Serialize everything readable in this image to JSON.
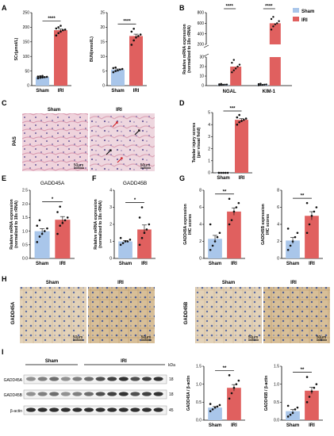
{
  "colors": {
    "sham": "#a9c6ea",
    "iri": "#e0605f",
    "axis": "#000000",
    "pas_pink": "#e8b4c4",
    "ihc_bg": "#d9c3a3",
    "ihc_nuclei": "#5a6aa0",
    "band": "#1a1a1a"
  },
  "panels": {
    "A": "A",
    "B": "B",
    "C": "C",
    "D": "D",
    "E": "E",
    "F": "F",
    "G": "G",
    "H": "H",
    "I": "I"
  },
  "legend": {
    "sham": "Sham",
    "iri": "IRI"
  },
  "micrographs": {
    "C": {
      "row_label": "PAS",
      "col1": "Sham",
      "col2": "IRI",
      "scale1": "50μm",
      "scale2": "50μm"
    },
    "H": {
      "row1": "GADD45A",
      "row2": "GADD45B",
      "col1": "Sham",
      "col2": "IRI",
      "col3": "Sham",
      "col4": "IRI",
      "scale": "50μm"
    }
  },
  "western": {
    "header_sham": "Sham",
    "header_iri": "IRI",
    "kda": "kDa",
    "rows": [
      {
        "label": "GADD45A",
        "kda": "18"
      },
      {
        "label": "GADD45B",
        "kda": "18"
      },
      {
        "label": "β-actin",
        "kda": "45"
      }
    ]
  },
  "chart_data": [
    {
      "id": "A1",
      "type": "bar",
      "categories": [
        "Sham",
        "IRI"
      ],
      "values": [
        29,
        190
      ],
      "ylabel": "SCr(μmol/L)",
      "ylim": [
        0,
        250
      ],
      "yticks": [
        0,
        50,
        100,
        150,
        200,
        250
      ],
      "significance": "****",
      "points": [
        [
          25,
          27,
          28,
          29,
          30,
          31,
          32,
          33
        ],
        [
          172,
          180,
          185,
          190,
          192,
          196,
          200,
          205
        ]
      ]
    },
    {
      "id": "A2",
      "type": "bar",
      "categories": [
        "Sham",
        "IRI"
      ],
      "values": [
        5.5,
        17
      ],
      "ylabel": "BUN(mmol/L)",
      "ylim": [
        0,
        25
      ],
      "yticks": [
        0,
        5,
        10,
        15,
        20,
        25
      ],
      "significance": "****",
      "points": [
        [
          4.6,
          5.0,
          5.2,
          5.5,
          5.7,
          6.0,
          6.2
        ],
        [
          14,
          15.5,
          16.5,
          17,
          17.5,
          18.5,
          19.5
        ]
      ]
    },
    {
      "id": "B",
      "type": "bar",
      "categories": [
        "NGAL",
        "KIM-1"
      ],
      "ylabel": "Relative mRNA expression (normalized to 18s rRNA)",
      "yticks": [
        0,
        10,
        20,
        30,
        200,
        400,
        600,
        800
      ],
      "axis_break": [
        30,
        200
      ],
      "significance": [
        "****",
        "****"
      ],
      "series": [
        {
          "name": "Sham",
          "values": [
            1,
            1
          ],
          "points": [
            [
              0.4,
              0.7,
              0.9,
              1.0,
              1.1,
              1.4,
              1.8
            ],
            [
              0.3,
              0.6,
              0.8,
              1.0,
              1.2,
              1.6,
              2.0
            ]
          ]
        },
        {
          "name": "IRI",
          "values": [
            20,
            600
          ],
          "points": [
            [
              14,
              16,
              18,
              20,
              22,
              24,
              27
            ],
            [
              480,
              540,
              580,
              600,
              640,
              680,
              720
            ]
          ]
        }
      ]
    },
    {
      "id": "D",
      "type": "bar",
      "categories": [
        "Sham",
        "IRI"
      ],
      "values": [
        0,
        4.4
      ],
      "ylabel": "Tubular injury scores (per visual field)",
      "ylim": [
        0,
        5
      ],
      "yticks": [
        0,
        1,
        2,
        3,
        4,
        5
      ],
      "significance": "***",
      "points": [
        [
          0,
          0,
          0,
          0,
          0,
          0
        ],
        [
          4.0,
          4.2,
          4.3,
          4.4,
          4.5,
          4.6,
          4.8
        ]
      ]
    },
    {
      "id": "E",
      "type": "bar",
      "title": "GADD45A",
      "categories": [
        "Sham",
        "IRI"
      ],
      "values": [
        1.0,
        1.42
      ],
      "ylabel": "Relative mRNA expression (normalized to 18s rRNA)",
      "ylim": [
        0,
        2.5
      ],
      "yticks": [
        0.0,
        0.5,
        1.0,
        1.5,
        2.0,
        2.5
      ],
      "significance": "*",
      "points": [
        [
          0.6,
          0.8,
          0.9,
          1.0,
          1.1,
          1.2,
          1.4
        ],
        [
          0.9,
          1.2,
          1.3,
          1.4,
          1.5,
          1.7,
          1.9
        ]
      ]
    },
    {
      "id": "F",
      "type": "bar",
      "title": "GADD45B",
      "categories": [
        "Sham",
        "IRI"
      ],
      "values": [
        1.0,
        1.7
      ],
      "ylabel": "Relative mRNA expression (normalized to 18s rRNA)",
      "ylim": [
        0,
        4
      ],
      "yticks": [
        0,
        1,
        2,
        3,
        4
      ],
      "significance": "*",
      "points": [
        [
          0.8,
          0.9,
          1.0,
          1.0,
          1.1,
          1.2
        ],
        [
          0.8,
          1.2,
          1.5,
          1.7,
          2.0,
          2.4,
          3.0
        ]
      ]
    },
    {
      "id": "G1",
      "type": "bar",
      "categories": [
        "Sham",
        "IRI"
      ],
      "values": [
        2.3,
        5.5
      ],
      "ylabel": "GADD45A expression IHC scores",
      "ylim": [
        0,
        8
      ],
      "yticks": [
        0,
        2,
        4,
        6,
        8
      ],
      "significance": "**",
      "points": [
        [
          1.0,
          1.5,
          2.0,
          2.5,
          3.0,
          4.0
        ],
        [
          4.0,
          4.5,
          5.5,
          6.0,
          6.5,
          7.0
        ]
      ]
    },
    {
      "id": "G2",
      "type": "bar",
      "categories": [
        "Sham",
        "IRI"
      ],
      "values": [
        2.1,
        5.0
      ],
      "ylabel": "GADD45B expression IHC scores",
      "ylim": [
        0,
        8
      ],
      "yticks": [
        0,
        2,
        4,
        6,
        8
      ],
      "significance": "**",
      "points": [
        [
          1.0,
          1.5,
          2.0,
          2.5,
          3.0,
          3.5
        ],
        [
          3.0,
          4.0,
          5.0,
          5.5,
          6.0,
          6.5
        ]
      ]
    },
    {
      "id": "I1",
      "type": "bar",
      "categories": [
        "Sham",
        "IRI"
      ],
      "values": [
        0.35,
        0.9
      ],
      "ylabel": "GADD45A / β-actin",
      "ylim": [
        0,
        1.5
      ],
      "yticks": [
        0.0,
        0.5,
        1.0,
        1.5
      ],
      "significance": "**",
      "points": [
        [
          0.25,
          0.3,
          0.35,
          0.38,
          0.42,
          0.45
        ],
        [
          0.6,
          0.75,
          0.9,
          1.0,
          1.1,
          1.25
        ]
      ]
    },
    {
      "id": "I2",
      "type": "bar",
      "categories": [
        "Sham",
        "IRI"
      ],
      "values": [
        0.25,
        0.82
      ],
      "ylabel": "GADD45B / β-actin",
      "ylim": [
        0,
        1.5
      ],
      "yticks": [
        0.0,
        0.5,
        1.0,
        1.5
      ],
      "significance": "**",
      "points": [
        [
          0.1,
          0.15,
          0.2,
          0.3,
          0.35,
          0.4
        ],
        [
          0.5,
          0.65,
          0.8,
          0.9,
          1.0,
          1.2
        ]
      ]
    }
  ]
}
